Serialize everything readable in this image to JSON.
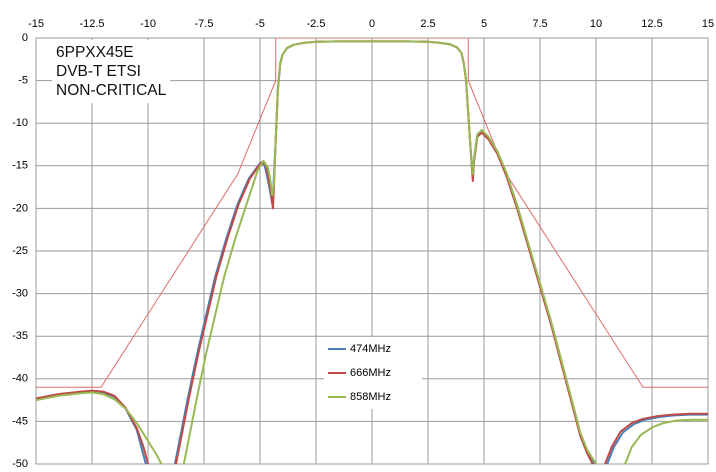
{
  "chart_data": {
    "type": "line",
    "title_lines": [
      "6PPXX45E",
      "DVB-T ETSI",
      "NON-CRITICAL"
    ],
    "xlabel": "",
    "ylabel": "",
    "xlim": [
      -15,
      15
    ],
    "ylim": [
      -50,
      0
    ],
    "xticks": [
      -15,
      -12.5,
      -10,
      -7.5,
      -5,
      -2.5,
      0,
      2.5,
      5,
      7.5,
      10,
      12.5,
      15
    ],
    "yticks": [
      0,
      -5,
      -10,
      -15,
      -20,
      -25,
      -30,
      -35,
      -40,
      -45,
      -50
    ],
    "grid": true,
    "legend_position": "center-bottom",
    "mask": {
      "color": "#e06a6a",
      "x": [
        -15,
        -12.1,
        -6,
        -4.3,
        -4.3,
        4.3,
        4.3,
        6,
        12.1,
        15
      ],
      "y": [
        -41,
        -41,
        -16,
        -5,
        0,
        0,
        -5,
        -16,
        -41,
        -41
      ]
    },
    "series": [
      {
        "name": "474MHz",
        "color": "#4a7ebb",
        "segments": [
          {
            "x": [
              -15,
              -14,
              -13,
              -12.5,
              -12,
              -11.5,
              -11,
              -10.5,
              -10.3,
              -10.1
            ],
            "y": [
              -42.4,
              -41.9,
              -41.6,
              -41.5,
              -41.6,
              -42.1,
              -43.5,
              -46,
              -48,
              -50
            ]
          },
          {
            "x": [
              -8.8,
              -8.5,
              -8.2,
              -7.8,
              -7.4,
              -7,
              -6.5,
              -6,
              -5.5,
              -5,
              -4.8,
              -4.7,
              -4.55,
              -4.45,
              -4.4,
              -4.3,
              -4.2,
              -4.1,
              -4,
              -3.8,
              -3.5,
              -3,
              -2.5,
              -1.5,
              0,
              1.5,
              2.5,
              3,
              3.5,
              3.8,
              4,
              4.1,
              4.2,
              4.3,
              4.4,
              4.5,
              4.55,
              4.7,
              4.9,
              5.2,
              5.6,
              6,
              6.5,
              7,
              7.5,
              8,
              8.5,
              9,
              9.3,
              9.6,
              9.9
            ],
            "y": [
              -50,
              -46,
              -42,
              -37,
              -32.5,
              -28,
              -23.5,
              -19.5,
              -16.5,
              -14.7,
              -14.9,
              -16,
              -18,
              -19.5,
              -17.5,
              -12,
              -6,
              -3,
              -2,
              -1.2,
              -0.8,
              -0.55,
              -0.45,
              -0.4,
              -0.4,
              -0.4,
              -0.45,
              -0.55,
              -0.75,
              -1.1,
              -1.8,
              -3,
              -5,
              -9,
              -13,
              -16.5,
              -14.5,
              -11.5,
              -11,
              -11.8,
              -13.5,
              -16,
              -20,
              -24.5,
              -29,
              -33.5,
              -38.5,
              -43.5,
              -46.5,
              -48.5,
              -50
            ]
          },
          {
            "x": [
              10.5,
              10.8,
              11.2,
              11.7,
              12.2,
              12.8,
              13.5,
              14.2,
              15
            ],
            "y": [
              -50,
              -48,
              -46.3,
              -45.3,
              -44.8,
              -44.5,
              -44.3,
              -44.2,
              -44.2
            ]
          }
        ]
      },
      {
        "name": "666MHz",
        "color": "#be4b48",
        "segments": [
          {
            "x": [
              -15,
              -14,
              -13,
              -12.5,
              -12,
              -11.5,
              -11,
              -10.5,
              -10.2,
              -10
            ],
            "y": [
              -42.3,
              -41.8,
              -41.5,
              -41.4,
              -41.5,
              -42,
              -43.4,
              -45.8,
              -48,
              -50
            ]
          },
          {
            "x": [
              -8.75,
              -8.45,
              -8.15,
              -7.75,
              -7.35,
              -6.95,
              -6.45,
              -5.95,
              -5.45,
              -4.95,
              -4.75,
              -4.65,
              -4.52,
              -4.42,
              -4.38,
              -4.3,
              -4.2,
              -4.1,
              -4,
              -3.8,
              -3.5,
              -3,
              -2.5,
              -1.5,
              0,
              1.5,
              2.5,
              3,
              3.5,
              3.8,
              4,
              4.1,
              4.2,
              4.3,
              4.4,
              4.5,
              4.55,
              4.7,
              4.9,
              5.2,
              5.6,
              6,
              6.5,
              7,
              7.5,
              8,
              8.5,
              9,
              9.3,
              9.6,
              9.85
            ],
            "y": [
              -50,
              -46,
              -42,
              -37,
              -32.5,
              -28,
              -23.5,
              -19.5,
              -16.5,
              -14.6,
              -14.8,
              -16,
              -18,
              -20,
              -17.5,
              -12,
              -6,
              -3,
              -2,
              -1.2,
              -0.8,
              -0.55,
              -0.45,
              -0.4,
              -0.4,
              -0.4,
              -0.45,
              -0.55,
              -0.75,
              -1.1,
              -1.8,
              -3,
              -5,
              -9,
              -13,
              -16.8,
              -14.6,
              -11.6,
              -11.1,
              -11.9,
              -13.6,
              -16.2,
              -20.2,
              -24.7,
              -29.2,
              -33.7,
              -38.7,
              -43.7,
              -46.7,
              -48.7,
              -50
            ]
          },
          {
            "x": [
              10.4,
              10.7,
              11.1,
              11.6,
              12.1,
              12.7,
              13.4,
              14.2,
              15
            ],
            "y": [
              -50,
              -48,
              -46.2,
              -45.2,
              -44.7,
              -44.4,
              -44.2,
              -44.1,
              -44.1
            ]
          }
        ]
      },
      {
        "name": "858MHz",
        "color": "#98b954",
        "segments": [
          {
            "x": [
              -15,
              -14,
              -13,
              -12.5,
              -12,
              -11.5,
              -11,
              -10.5,
              -10,
              -9.6,
              -9.4
            ],
            "y": [
              -42.5,
              -42,
              -41.7,
              -41.6,
              -41.8,
              -42.4,
              -43.5,
              -45.2,
              -47.3,
              -49,
              -50
            ]
          },
          {
            "x": [
              -8.4,
              -8.1,
              -7.8,
              -7.4,
              -7,
              -6.6,
              -6.1,
              -5.6,
              -5.1,
              -4.85,
              -4.65,
              -4.55,
              -4.45,
              -4.38,
              -4.3,
              -4.2,
              -4.1,
              -4,
              -3.8,
              -3.5,
              -3,
              -2.5,
              -1.5,
              0,
              1.5,
              2.5,
              3,
              3.5,
              3.8,
              4,
              4.1,
              4.2,
              4.3,
              4.4,
              4.5,
              4.55,
              4.7,
              4.9,
              5.2,
              5.6,
              6,
              6.5,
              7,
              7.5,
              8,
              8.5,
              9,
              9.3,
              9.6,
              10
            ],
            "y": [
              -50,
              -46,
              -42,
              -37,
              -32.5,
              -28,
              -23.5,
              -19.5,
              -15.5,
              -14.4,
              -15.2,
              -16.5,
              -18.5,
              -17,
              -12,
              -6,
              -3,
              -2,
              -1.2,
              -0.8,
              -0.55,
              -0.45,
              -0.4,
              -0.4,
              -0.4,
              -0.45,
              -0.55,
              -0.75,
              -1.1,
              -1.8,
              -3,
              -5,
              -9,
              -13,
              -16,
              -14.2,
              -11.3,
              -10.8,
              -11.6,
              -13.3,
              -15.8,
              -19.8,
              -24.3,
              -28.8,
              -33.3,
              -38.3,
              -43.3,
              -46.3,
              -48.3,
              -50
            ]
          },
          {
            "x": [
              11.3,
              11.6,
              12,
              12.5,
              13,
              13.6,
              14.3,
              15
            ],
            "y": [
              -50,
              -48,
              -46.6,
              -45.7,
              -45.2,
              -44.9,
              -44.8,
              -44.8
            ]
          }
        ]
      }
    ]
  }
}
